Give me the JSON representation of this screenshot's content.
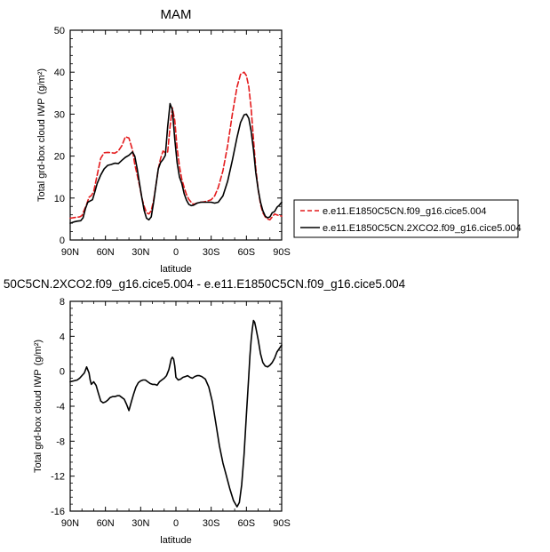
{
  "chart_data": [
    {
      "type": "line",
      "title": "MAM",
      "xlabel": "latitude",
      "ylabel": "Total grd-box cloud IWP",
      "ylabel_units": "(g/m²)",
      "xlim": [
        90,
        -90
      ],
      "ylim": [
        0,
        50
      ],
      "xticks": [
        90,
        60,
        30,
        0,
        -30,
        -60,
        -90
      ],
      "xtick_labels": [
        "90N",
        "60N",
        "30N",
        "0",
        "30S",
        "60S",
        "90S"
      ],
      "yticks": [
        0,
        10,
        20,
        30,
        40,
        50
      ],
      "ytick_labels": [
        "0",
        "10",
        "20",
        "30",
        "40",
        "50"
      ],
      "grid": false,
      "legend_position": "right",
      "series": [
        {
          "name": "e.e11.E1850C5CN.f09_g16.cice5.004",
          "color": "#e41a1c",
          "style": "dashed",
          "x": [
            90,
            85,
            82,
            80,
            78,
            76,
            74,
            72,
            70,
            67,
            64,
            61,
            58,
            55,
            52,
            49,
            46,
            43,
            40,
            37,
            35,
            33,
            31,
            29,
            27,
            25,
            23,
            21,
            19,
            17,
            15,
            13,
            11,
            9,
            7,
            5,
            3,
            1,
            -1,
            -3,
            -5,
            -7,
            -9,
            -11,
            -13,
            -15,
            -18,
            -21,
            -24,
            -27,
            -30,
            -33,
            -36,
            -40,
            -44,
            -48,
            -52,
            -55,
            -58,
            -60,
            -62,
            -64,
            -66,
            -68,
            -70,
            -72,
            -74,
            -76,
            -78,
            -80,
            -82,
            -84,
            -86,
            -88,
            -90
          ],
          "y": [
            5.2,
            5.4,
            5.5,
            5.8,
            7.2,
            8.5,
            10.2,
            10.6,
            11.5,
            15.5,
            19.5,
            20.8,
            20.9,
            20.8,
            20.7,
            21.2,
            22.5,
            24.6,
            24.3,
            21.5,
            18.0,
            15.5,
            13.0,
            10.0,
            8.0,
            6.5,
            6.2,
            7.0,
            9.5,
            13.0,
            17.0,
            19.5,
            21.2,
            20.8,
            21.0,
            27.0,
            31.5,
            28.5,
            22.0,
            17.5,
            14.5,
            12.5,
            10.8,
            9.7,
            9.0,
            8.5,
            8.8,
            9.0,
            9.1,
            9.3,
            9.6,
            10.5,
            12.5,
            16.5,
            22.5,
            30.0,
            36.5,
            39.5,
            40.0,
            39.2,
            36.5,
            31.5,
            24.0,
            17.0,
            12.0,
            8.5,
            6.5,
            5.5,
            5.0,
            4.8,
            5.5,
            6.2,
            6.0,
            5.8,
            5.7
          ]
        },
        {
          "name": "e.e11.E1850C5CN.2XCO2.f09_g16.cice5.004",
          "color": "#000000",
          "style": "solid",
          "x": [
            90,
            87,
            84,
            81,
            79,
            77,
            75,
            73,
            71,
            69,
            67,
            64,
            61,
            58,
            55,
            52,
            49,
            46,
            43,
            40,
            37,
            35,
            33,
            31,
            29,
            27,
            25,
            23,
            21,
            19,
            17,
            15,
            13,
            11,
            9,
            7,
            5,
            3,
            1,
            -1,
            -3,
            -5,
            -7,
            -9,
            -11,
            -13,
            -15,
            -18,
            -21,
            -24,
            -27,
            -30,
            -33,
            -36,
            -40,
            -44,
            -48,
            -52,
            -55,
            -58,
            -60,
            -62,
            -64,
            -66,
            -68,
            -70,
            -72,
            -74,
            -76,
            -78,
            -80,
            -82,
            -84,
            -86,
            -88,
            -90
          ],
          "y": [
            4.0,
            4.3,
            4.5,
            4.6,
            5.3,
            7.5,
            9.0,
            9.3,
            9.6,
            11.5,
            13.5,
            15.5,
            17.0,
            17.8,
            18.0,
            18.3,
            18.2,
            19.0,
            19.7,
            20.2,
            21.0,
            20.0,
            17.0,
            13.5,
            10.0,
            7.0,
            5.2,
            4.8,
            5.5,
            9.0,
            13.0,
            17.0,
            18.5,
            19.2,
            20.2,
            27.0,
            32.5,
            31.0,
            24.0,
            18.5,
            15.0,
            13.5,
            11.0,
            9.5,
            8.5,
            8.2,
            8.3,
            8.8,
            9.0,
            9.0,
            9.0,
            9.0,
            8.8,
            9.0,
            10.5,
            14.0,
            19.0,
            24.5,
            28.0,
            29.8,
            30.0,
            29.0,
            26.0,
            21.5,
            16.0,
            12.0,
            9.0,
            7.0,
            5.7,
            5.3,
            5.5,
            6.5,
            6.8,
            7.8,
            8.3,
            9.0
          ]
        }
      ]
    },
    {
      "type": "line",
      "title": "50C5CN.2XCO2.f09_g16.cice5.004 - e.e11.E1850C5CN.f09_g16.cice5.004",
      "xlabel": "latitude",
      "ylabel": "Total grd-box cloud IWP",
      "ylabel_units": "(g/m²)",
      "xlim": [
        90,
        -90
      ],
      "ylim": [
        -16,
        8
      ],
      "xticks": [
        90,
        60,
        30,
        0,
        -30,
        -60,
        -90
      ],
      "xtick_labels": [
        "90N",
        "60N",
        "30N",
        "0",
        "30S",
        "60S",
        "90S"
      ],
      "yticks": [
        -16,
        -12,
        -8,
        -4,
        0,
        4,
        8
      ],
      "ytick_labels": [
        "-16",
        "-12",
        "-8",
        "-4",
        "0",
        "4",
        "8"
      ],
      "grid": false,
      "series": [
        {
          "color": "#000000",
          "style": "solid",
          "x": [
            90,
            87,
            84,
            82,
            80,
            78,
            76,
            74,
            73,
            72,
            70,
            68,
            66,
            64,
            62,
            60,
            58,
            56,
            54,
            52,
            50,
            48,
            46,
            44,
            42,
            40,
            38,
            36,
            34,
            32,
            30,
            28,
            26,
            24,
            22,
            20,
            18,
            16,
            14,
            12,
            10,
            8,
            6,
            5,
            4,
            3,
            2,
            1,
            0,
            -2,
            -4,
            -6,
            -8,
            -10,
            -12,
            -14,
            -16,
            -18,
            -20,
            -22,
            -25,
            -28,
            -31,
            -34,
            -37,
            -40,
            -43,
            -46,
            -49,
            -52,
            -54,
            -56,
            -58,
            -60,
            -62,
            -63,
            -64,
            -65,
            -66,
            -67,
            -68,
            -70,
            -72,
            -74,
            -76,
            -78,
            -80,
            -82,
            -84,
            -86,
            -88,
            -90
          ],
          "y": [
            -1.2,
            -1.1,
            -1.0,
            -0.8,
            -0.5,
            -0.2,
            0.5,
            -0.2,
            -1.0,
            -1.5,
            -1.2,
            -1.6,
            -2.5,
            -3.4,
            -3.6,
            -3.5,
            -3.3,
            -3.0,
            -2.9,
            -2.9,
            -2.8,
            -2.8,
            -3.0,
            -3.2,
            -3.8,
            -4.5,
            -3.5,
            -2.6,
            -1.8,
            -1.3,
            -1.1,
            -1.0,
            -1.0,
            -1.2,
            -1.4,
            -1.5,
            -1.5,
            -1.6,
            -1.2,
            -1.0,
            -0.8,
            -0.5,
            0.2,
            0.8,
            1.4,
            1.6,
            1.4,
            0.6,
            -0.7,
            -1.0,
            -0.9,
            -0.7,
            -0.6,
            -0.5,
            -0.7,
            -0.8,
            -0.6,
            -0.5,
            -0.5,
            -0.6,
            -0.9,
            -1.8,
            -3.5,
            -6.0,
            -8.5,
            -10.5,
            -12.0,
            -13.5,
            -14.8,
            -15.5,
            -15.0,
            -13.0,
            -9.5,
            -5.0,
            -0.5,
            1.8,
            3.5,
            4.8,
            5.8,
            5.6,
            5.0,
            3.6,
            2.0,
            1.0,
            0.6,
            0.5,
            0.7,
            1.0,
            1.5,
            2.2,
            2.6,
            3.0
          ]
        }
      ]
    }
  ]
}
